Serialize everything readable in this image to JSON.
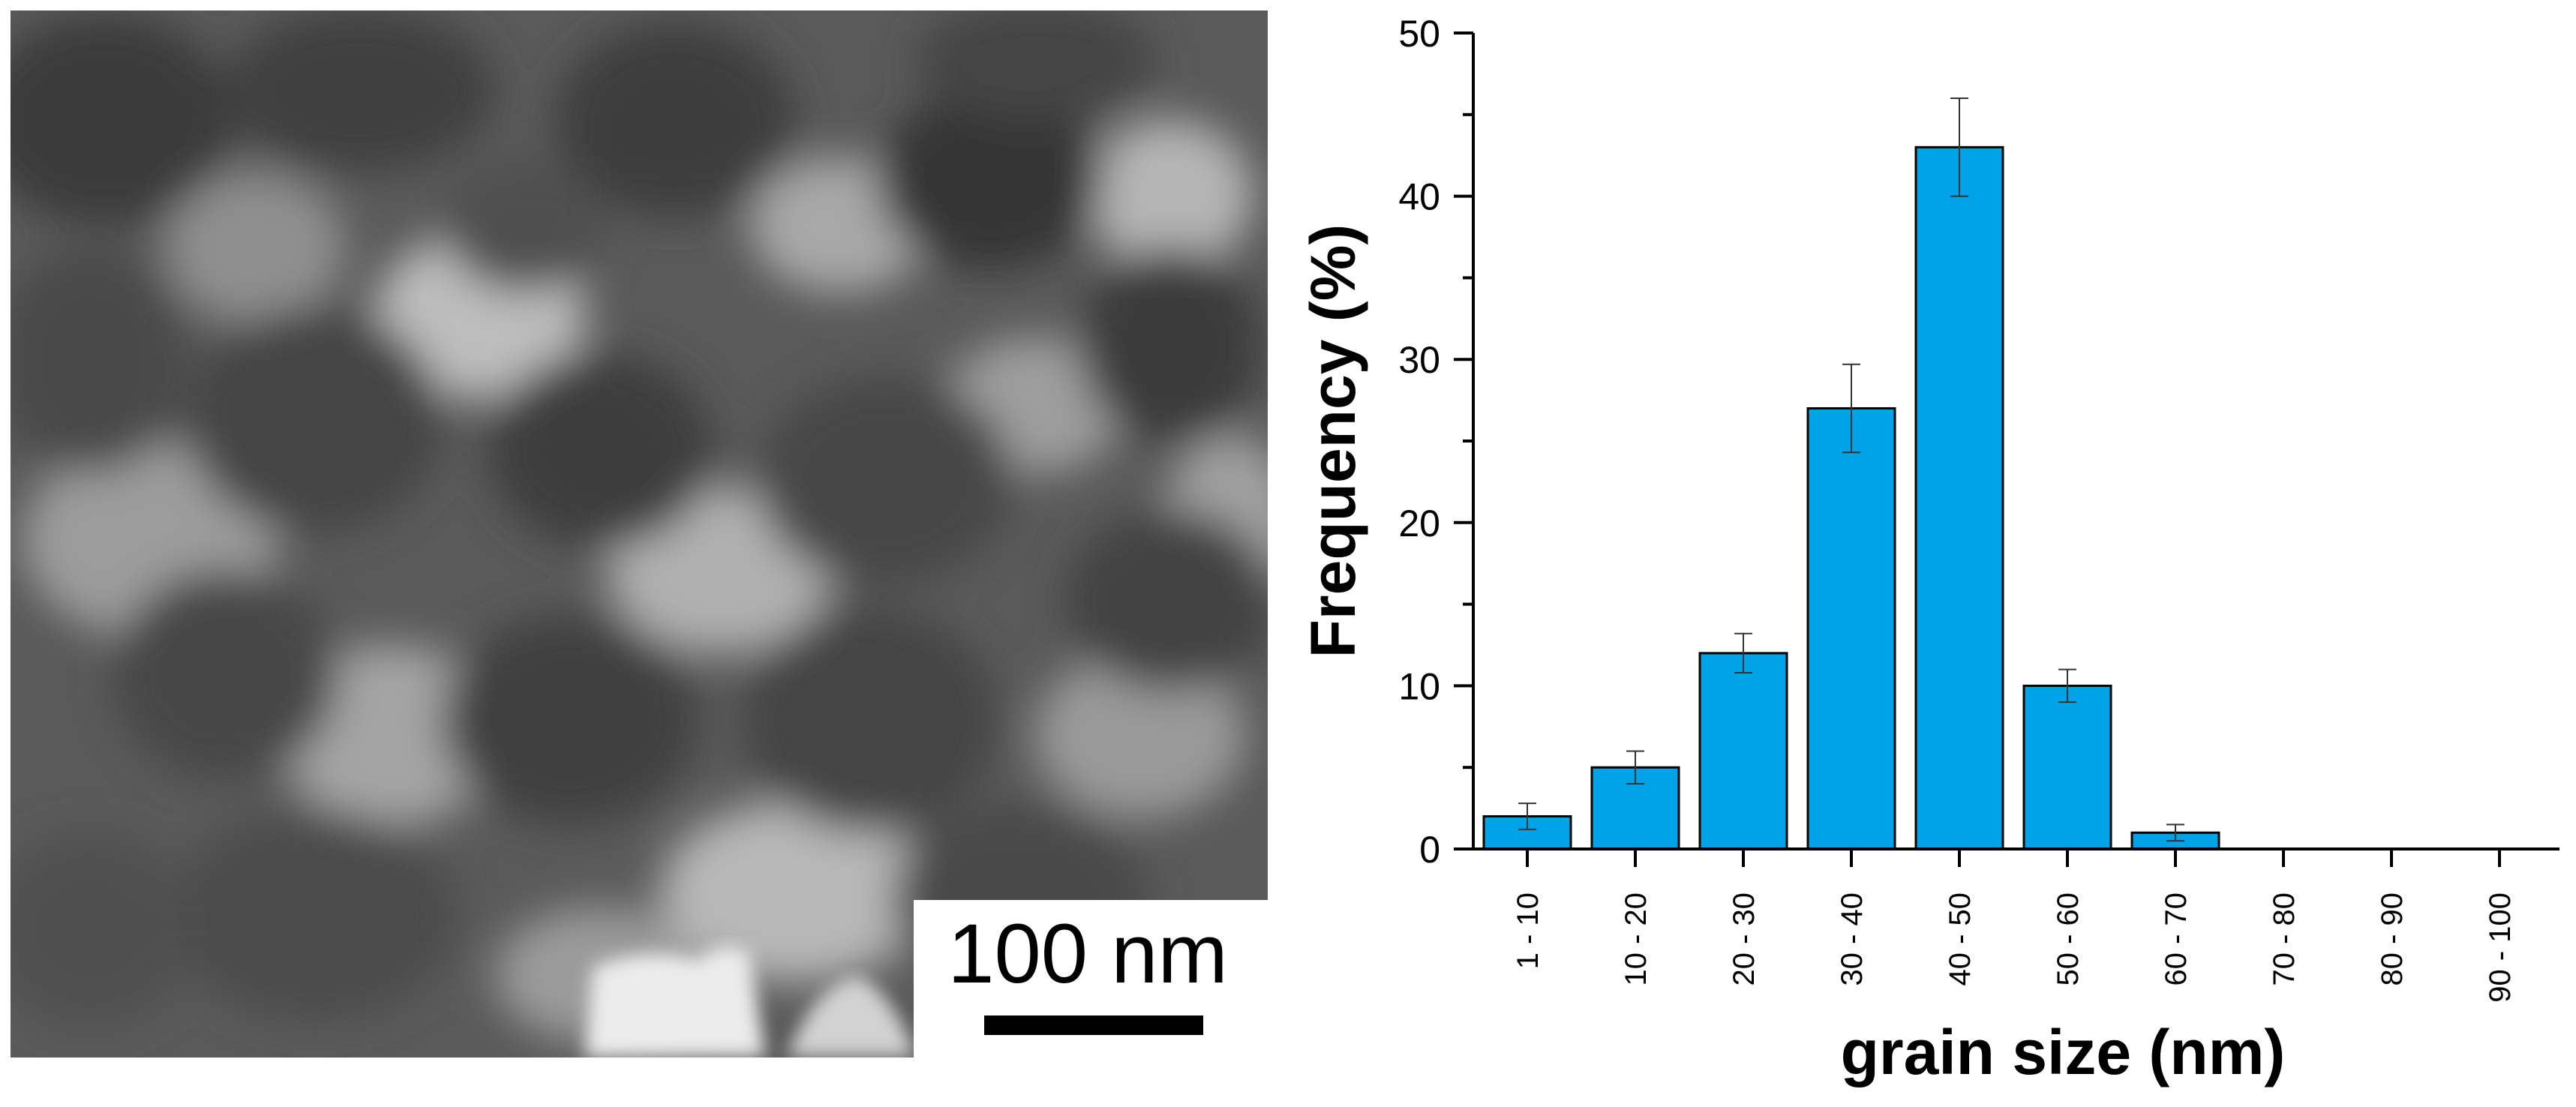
{
  "micrograph": {
    "scale_bar_label": "100 nm",
    "background_color": "#5e5e5e"
  },
  "chart_data": {
    "type": "bar",
    "categories": [
      "1 - 10",
      "10 - 20",
      "20 - 30",
      "30 - 40",
      "40 - 50",
      "50 - 60",
      "60 - 70",
      "70 - 80",
      "80 - 90",
      "90 - 100"
    ],
    "values": [
      2,
      5,
      12,
      27,
      43,
      10,
      1,
      0,
      0,
      0
    ],
    "errors": [
      0.8,
      1.0,
      1.2,
      2.7,
      3.0,
      1.0,
      0.5,
      0,
      0,
      0
    ],
    "xlabel": "grain size (nm)",
    "ylabel": "Frequency (%)",
    "ylim": [
      0,
      50
    ],
    "yticks": [
      0,
      10,
      20,
      30,
      40,
      50
    ],
    "bar_color": "#00a2e8",
    "grid": false
  }
}
